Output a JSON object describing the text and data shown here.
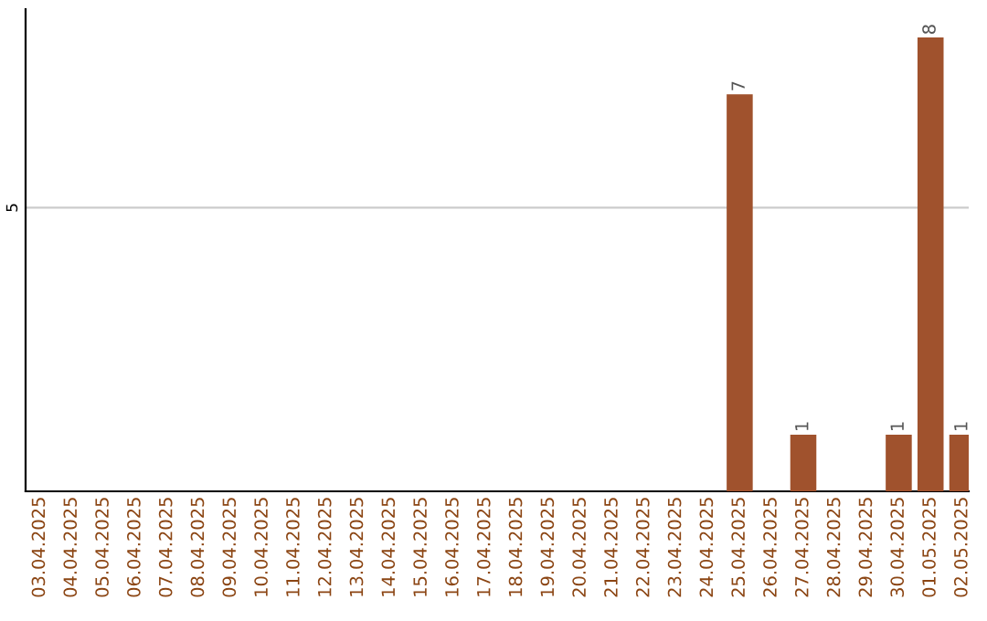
{
  "chart_data": {
    "type": "bar",
    "categories": [
      "03.04.2025",
      "04.04.2025",
      "05.04.2025",
      "06.04.2025",
      "07.04.2025",
      "08.04.2025",
      "09.04.2025",
      "10.04.2025",
      "11.04.2025",
      "12.04.2025",
      "13.04.2025",
      "14.04.2025",
      "15.04.2025",
      "16.04.2025",
      "17.04.2025",
      "18.04.2025",
      "19.04.2025",
      "20.04.2025",
      "21.04.2025",
      "22.04.2025",
      "23.04.2025",
      "24.04.2025",
      "25.04.2025",
      "26.04.2025",
      "27.04.2025",
      "28.04.2025",
      "29.04.2025",
      "30.04.2025",
      "01.05.2025",
      "02.05.2025"
    ],
    "values": [
      null,
      null,
      null,
      null,
      null,
      null,
      null,
      null,
      null,
      null,
      null,
      null,
      null,
      null,
      null,
      null,
      null,
      null,
      null,
      null,
      null,
      null,
      7,
      null,
      1,
      null,
      null,
      1,
      8,
      1
    ],
    "value_labels": [
      null,
      null,
      null,
      null,
      null,
      null,
      null,
      null,
      null,
      null,
      null,
      null,
      null,
      null,
      null,
      null,
      null,
      null,
      null,
      null,
      null,
      null,
      "7",
      null,
      "1",
      null,
      null,
      "1",
      "8",
      "1"
    ],
    "color": "#a0522d",
    "ylim": [
      0,
      8.5
    ],
    "yticks": [
      5
    ],
    "grid": "y"
  }
}
